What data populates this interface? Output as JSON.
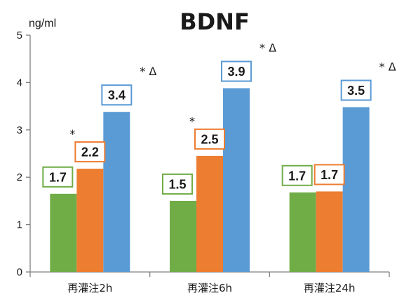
{
  "chart_data": {
    "type": "bar",
    "title": "BDNF",
    "ylabel": "ng/ml",
    "xlabel": "",
    "ylim": [
      0,
      5
    ],
    "yticks": [
      "0",
      "1",
      "2",
      "3",
      "4",
      "5"
    ],
    "grid": false,
    "legend": "none",
    "categories": [
      "再灌注2h",
      "再灌注6h",
      "再灌注24h"
    ],
    "series": [
      {
        "color": "#70ad47",
        "values": [
          1.65,
          1.5,
          1.68
        ],
        "labels": [
          "1.7",
          "1.5",
          "1.7"
        ]
      },
      {
        "color": "#ed7d31",
        "values": [
          2.18,
          2.45,
          1.7
        ],
        "labels": [
          "2.2",
          "2.5",
          "1.7"
        ]
      },
      {
        "color": "#5b9bd5",
        "values": [
          3.38,
          3.88,
          3.48
        ],
        "labels": [
          "3.4",
          "3.9",
          "3.5"
        ]
      }
    ],
    "annotations": [
      {
        "category": 0,
        "series": 1,
        "text": "*"
      },
      {
        "category": 0,
        "series": 2,
        "text": "* Δ"
      },
      {
        "category": 1,
        "series": 1,
        "text": "*"
      },
      {
        "category": 1,
        "series": 2,
        "text": "* Δ"
      },
      {
        "category": 2,
        "series": 2,
        "text": "* Δ"
      }
    ]
  }
}
